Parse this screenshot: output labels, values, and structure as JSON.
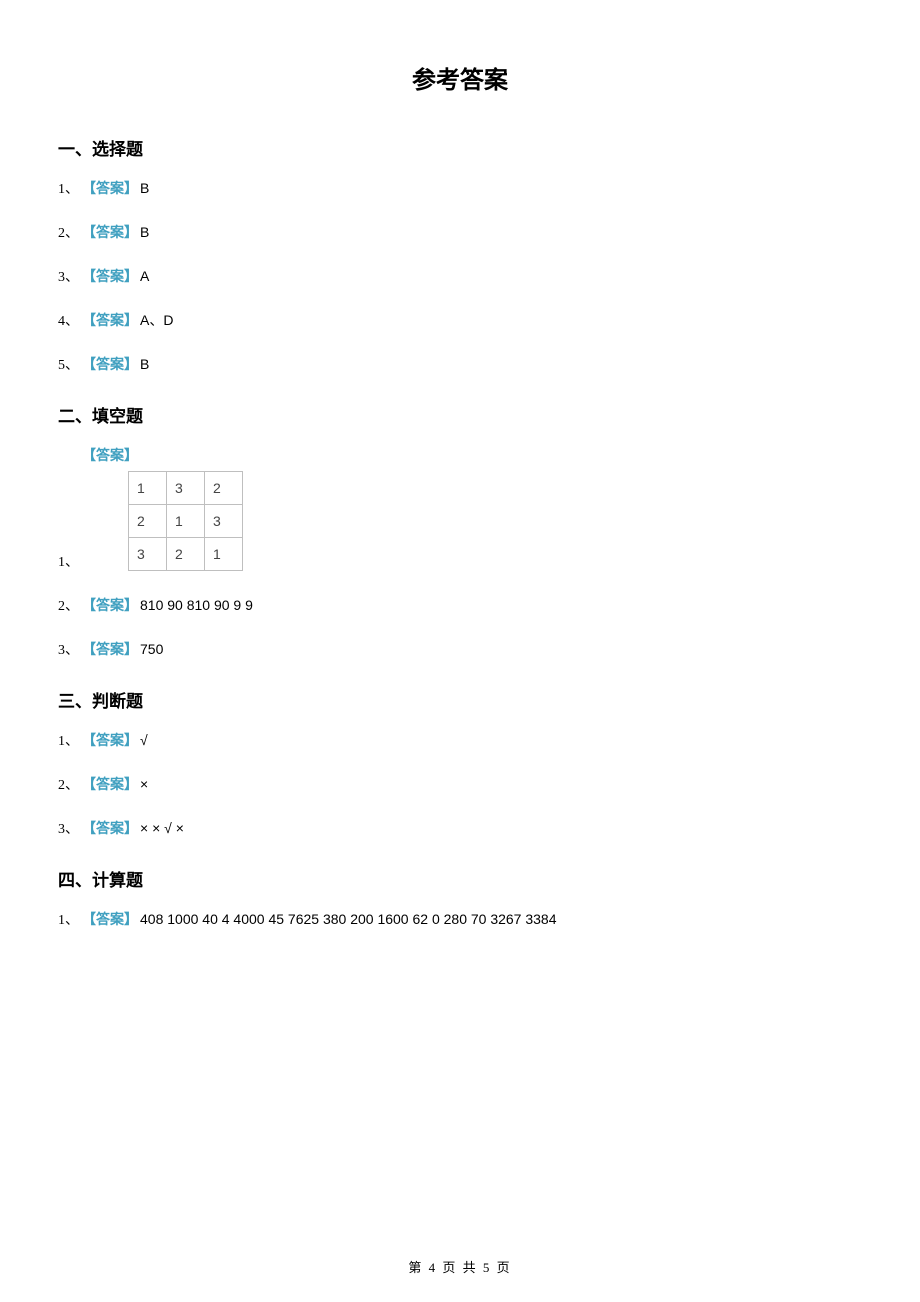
{
  "title": "参考答案",
  "answer_label_text": "【答案】",
  "sections": {
    "s1": {
      "heading": "一、选择题",
      "items": [
        {
          "num": "1、",
          "value": "B"
        },
        {
          "num": "2、",
          "value": "B"
        },
        {
          "num": "3、",
          "value": "A"
        },
        {
          "num": "4、",
          "value": "A、D"
        },
        {
          "num": "5、",
          "value": "B"
        }
      ]
    },
    "s2": {
      "heading": "二、填空题",
      "item1_num": "1、",
      "table": [
        [
          "1",
          "3",
          "2"
        ],
        [
          "2",
          "1",
          "3"
        ],
        [
          "3",
          "2",
          "1"
        ]
      ],
      "items_rest": [
        {
          "num": "2、",
          "value": "810 90 810 90 9 9"
        },
        {
          "num": "3、",
          "value": "750"
        }
      ]
    },
    "s3": {
      "heading": "三、判断题",
      "items": [
        {
          "num": "1、",
          "value": "√"
        },
        {
          "num": "2、",
          "value": "×"
        },
        {
          "num": "3、",
          "value": "× × √ ×"
        }
      ]
    },
    "s4": {
      "heading": "四、计算题",
      "items": [
        {
          "num": "1、",
          "value": "408 1000 40 4 4000 45 7625 380 200 1600 62 0 280 70 3267 3384"
        }
      ]
    }
  },
  "footer": "第 4 页 共 5 页"
}
